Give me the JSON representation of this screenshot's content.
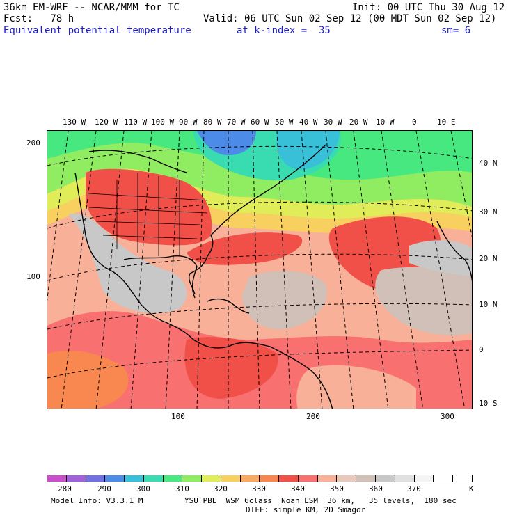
{
  "header": {
    "model_line": "36km EM-WRF -- NCAR/MMM for TC",
    "init_line": "Init: 00 UTC Thu 30 Aug 12",
    "fcst_line": "Fcst:   78 h",
    "valid_line": "Valid: 06 UTC Sun 02 Sep 12 (00 MDT Sun 02 Sep 12)",
    "field_name": "Equivalent potential temperature",
    "level": "at k-index =  35",
    "smoothing": "sm= 6"
  },
  "top_lon_labels": [
    "130 W",
    "120 W",
    "110 W",
    "100 W",
    "90 W",
    "80 W",
    "70 W",
    "60 W",
    "50 W",
    "40 W",
    "30 W",
    "20 W",
    "10 W",
    "0",
    "10 E"
  ],
  "right_lat_labels": [
    "40 N",
    "30 N",
    "20 N",
    "10 N",
    "0",
    "10 S"
  ],
  "left_grid_labels": [
    "200",
    "100"
  ],
  "bottom_grid_labels": [
    "100",
    "200",
    "300"
  ],
  "colorbar": {
    "colors": [
      "#c84fc8",
      "#a060d8",
      "#7070e0",
      "#4c8ce8",
      "#38c0d8",
      "#38dcb0",
      "#48e880",
      "#90ec60",
      "#e0ec58",
      "#f8d060",
      "#f8a860",
      "#f88850",
      "#f05048",
      "#f87070",
      "#f8b098",
      "#e8c8b8",
      "#d0c0b8",
      "#c8c8c8",
      "#e0e0e0",
      "#f4f4f4",
      "#ffffff",
      "#ffffff"
    ],
    "labels": [
      "280",
      "290",
      "300",
      "310",
      "320",
      "330",
      "340",
      "350",
      "360",
      "370",
      "K"
    ]
  },
  "footer": {
    "model_info": "Model Info: V3.3.1 M",
    "physics_line1": "YSU PBL  WSM 6class  Noah LSM  36 km,   35 levels,  180 sec",
    "physics_line2": "DIFF: simple KM, 2D Smagor"
  }
}
